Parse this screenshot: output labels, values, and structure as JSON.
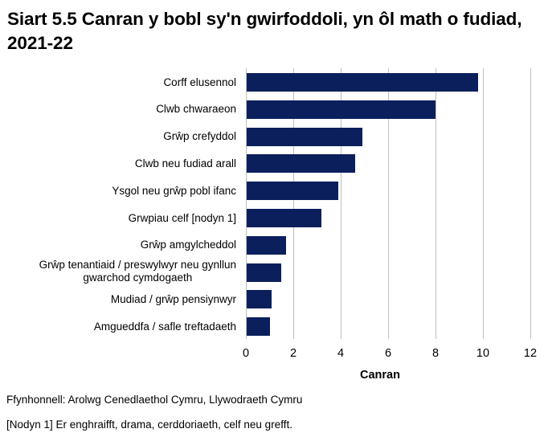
{
  "title": "Siart 5.5 Canran y bobl sy'n gwirfoddoli, yn ôl math o fudiad, 2021-22",
  "bar_color": "#0b1f5c",
  "grid_color": "#bfbfbf",
  "xaxis": {
    "title": "Canran",
    "ticks": [
      "0",
      "2",
      "4",
      "6",
      "8",
      "10",
      "12"
    ]
  },
  "footnotes": {
    "source": "Ffynhonnell: Arolwg Cenedlaethol Cymru, Llywodraeth Cymru",
    "note1": "[Nodyn 1] Er enghraifft, drama, cerddoriaeth, celf neu grefft."
  },
  "chart_data": {
    "type": "bar",
    "orientation": "horizontal",
    "title": "Siart 5.5 Canran y bobl sy'n gwirfoddoli, yn ôl math o fudiad, 2021-22",
    "xlabel": "Canran",
    "ylabel": "",
    "xlim": [
      0,
      12
    ],
    "xticks": [
      0,
      2,
      4,
      6,
      8,
      10,
      12
    ],
    "grid": true,
    "legend": null,
    "categories": [
      "Corff elusennol",
      "Clwb chwaraeon",
      "Grŵp crefyddol",
      "Clwb neu fudiad arall",
      "Ysgol neu grŵp pobl ifanc",
      "Grwpiau celf [nodyn 1]",
      "Grŵp amgylcheddol",
      "Grŵp tenantiaid / preswylwyr neu gynllun gwarchod cymdogaeth",
      "Mudiad / grŵp pensiynwyr",
      "Amgueddfa / safle treftadaeth"
    ],
    "values": [
      9.8,
      8.0,
      4.9,
      4.6,
      3.9,
      3.2,
      1.7,
      1.5,
      1.1,
      1.0
    ],
    "series": [
      {
        "name": "Canran",
        "values": [
          9.8,
          8.0,
          4.9,
          4.6,
          3.9,
          3.2,
          1.7,
          1.5,
          1.1,
          1.0
        ]
      }
    ],
    "annotations": [
      "Ffynhonnell: Arolwg Cenedlaethol Cymru, Llywodraeth Cymru",
      "[Nodyn 1] Er enghraifft, drama, cerddoriaeth, celf neu grefft."
    ]
  },
  "labels": {
    "0": [
      "Corff elusennol"
    ],
    "1": [
      "Clwb chwaraeon"
    ],
    "2": [
      "Grŵp crefyddol"
    ],
    "3": [
      "Clwb neu fudiad arall"
    ],
    "4": [
      "Ysgol neu grŵp pobl ifanc"
    ],
    "5": [
      "Grwpiau celf [nodyn 1]"
    ],
    "6": [
      "Grŵp amgylcheddol"
    ],
    "7": [
      "Grŵp tenantiaid / preswylwyr neu gynllun",
      "gwarchod cymdogaeth"
    ],
    "8": [
      "Mudiad / grŵp pensiynwyr"
    ],
    "9": [
      "Amgueddfa / safle treftadaeth"
    ]
  }
}
